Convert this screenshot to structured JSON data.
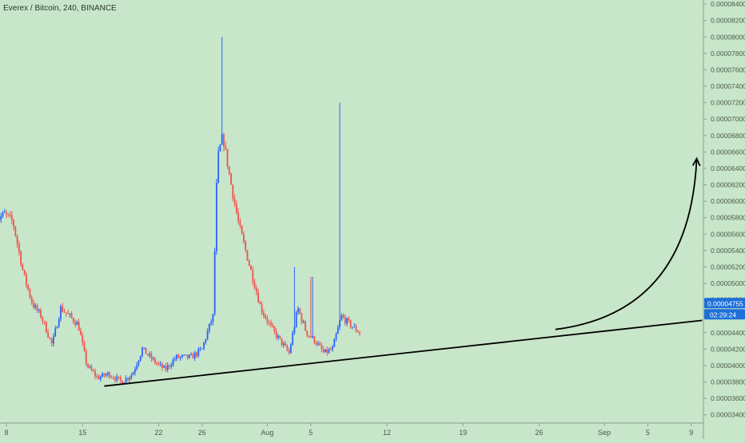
{
  "header": {
    "symbol_line": "Everex / Bitcoin, 240, BINANCE"
  },
  "price_badges": {
    "last_price": "0.00004755",
    "countdown": "02:29:24",
    "last_price_color": "#1e6fd9"
  },
  "colors": {
    "background": "#c8e6c9",
    "up_candle": "#2962ff",
    "down_candle": "#ef5350",
    "drawing": "#000000",
    "axis_text": "#4a5a4a"
  },
  "chart_data": {
    "type": "candlestick",
    "title": "Everex / Bitcoin, 240, BINANCE",
    "y_axis_side": "right",
    "ylim": [
      3.3e-05,
      8.45e-05
    ],
    "xlim": [
      6.5,
      40.5
    ],
    "x_tick_labels": [
      {
        "label": "8",
        "day": 8
      },
      {
        "label": "15",
        "day": 15
      },
      {
        "label": "22",
        "day": 22
      },
      {
        "label": "26",
        "day": 26
      },
      {
        "label": "Aug",
        "day": 32
      },
      {
        "label": "5",
        "day": 36
      },
      {
        "label": "12",
        "day": 43
      },
      {
        "label": "19",
        "day": 50
      },
      {
        "label": "26",
        "day": 57
      },
      {
        "label": "Sep",
        "day": 63
      },
      {
        "label": "5",
        "day": 67
      },
      {
        "label": "9",
        "day": 71
      }
    ],
    "y_tick_labels": [
      "0.00003400",
      "0.00003600",
      "0.00003800",
      "0.00004000",
      "0.00004200",
      "0.00004400",
      "0.00004600",
      "0.00004800",
      "0.00005000",
      "0.00005200",
      "0.00005400",
      "0.00005600",
      "0.00005800",
      "0.00006000",
      "0.00006200",
      "0.00006400",
      "0.00006600",
      "0.00006800",
      "0.00007000",
      "0.00007200",
      "0.00007400",
      "0.00007600",
      "0.00007800",
      "0.00008000",
      "0.00008200",
      "0.00008400"
    ],
    "y_tick_values": [
      3.4e-05,
      3.6e-05,
      3.8e-05,
      4e-05,
      4.2e-05,
      4.4e-05,
      4.6e-05,
      4.8e-05,
      5e-05,
      5.2e-05,
      5.4e-05,
      5.6e-05,
      5.8e-05,
      6e-05,
      6.2e-05,
      6.4e-05,
      6.6e-05,
      6.8e-05,
      7e-05,
      7.2e-05,
      7.4e-05,
      7.6e-05,
      7.8e-05,
      8e-05,
      8.2e-05,
      8.4e-05
    ],
    "price_path": [
      {
        "day": 7.0,
        "price": 5.75e-05
      },
      {
        "day": 7.8,
        "price": 5.85e-05
      },
      {
        "day": 8.6,
        "price": 5.75e-05
      },
      {
        "day": 9.6,
        "price": 5.1e-05
      },
      {
        "day": 10.4,
        "price": 4.75e-05
      },
      {
        "day": 11.2,
        "price": 4.6e-05
      },
      {
        "day": 12.2,
        "price": 4.25e-05
      },
      {
        "day": 13.0,
        "price": 4.7e-05
      },
      {
        "day": 13.8,
        "price": 4.6e-05
      },
      {
        "day": 14.6,
        "price": 4.5e-05
      },
      {
        "day": 15.4,
        "price": 4e-05
      },
      {
        "day": 16.4,
        "price": 3.85e-05
      },
      {
        "day": 17.4,
        "price": 3.9e-05
      },
      {
        "day": 18.6,
        "price": 3.8e-05
      },
      {
        "day": 19.6,
        "price": 3.9e-05
      },
      {
        "day": 20.5,
        "price": 4.2e-05
      },
      {
        "day": 21.6,
        "price": 4.05e-05
      },
      {
        "day": 22.6,
        "price": 3.95e-05
      },
      {
        "day": 23.6,
        "price": 4.1e-05
      },
      {
        "day": 25.0,
        "price": 4.1e-05
      },
      {
        "day": 26.0,
        "price": 4.2e-05
      },
      {
        "day": 26.6,
        "price": 4.45e-05
      },
      {
        "day": 27.0,
        "price": 4.6e-05
      },
      {
        "day": 27.4,
        "price": 6.5e-05
      },
      {
        "day": 27.9,
        "price": 6.8e-05
      },
      {
        "day": 28.6,
        "price": 6.25e-05
      },
      {
        "day": 29.4,
        "price": 5.7e-05
      },
      {
        "day": 30.4,
        "price": 5.2e-05
      },
      {
        "day": 31.4,
        "price": 4.7e-05
      },
      {
        "day": 32.4,
        "price": 4.45e-05
      },
      {
        "day": 33.2,
        "price": 4.3e-05
      },
      {
        "day": 34.0,
        "price": 4.15e-05
      },
      {
        "day": 34.8,
        "price": 4.7e-05
      },
      {
        "day": 35.6,
        "price": 4.4e-05
      },
      {
        "day": 36.4,
        "price": 4.3e-05
      },
      {
        "day": 37.2,
        "price": 4.15e-05
      },
      {
        "day": 38.0,
        "price": 4.2e-05
      },
      {
        "day": 38.8,
        "price": 4.6e-05
      },
      {
        "day": 39.6,
        "price": 4.5e-05
      },
      {
        "day": 40.5,
        "price": 4.4e-05
      }
    ],
    "annotations": [
      {
        "type": "trendline",
        "from": {
          "day": 17.0,
          "price": 3.75e-05
        },
        "to": {
          "day": 72.0,
          "price": 4.55e-05
        }
      },
      {
        "type": "curved_arrow",
        "from": {
          "day": 58.5,
          "price": 4.44e-05
        },
        "to": {
          "day": 71.5,
          "price": 6.52e-05
        }
      }
    ],
    "grid": false,
    "legend": "none"
  }
}
